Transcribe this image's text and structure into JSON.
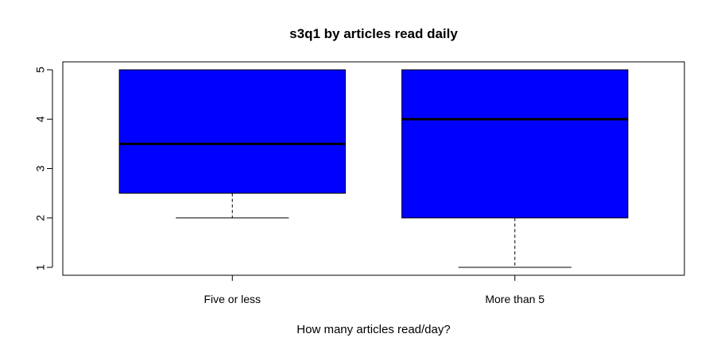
{
  "chart_data": {
    "type": "boxplot",
    "title": "s3q1 by articles read daily",
    "xlabel": "How many articles read/day?",
    "ylabel": "",
    "categories": [
      "Five or less",
      "More than 5"
    ],
    "boxes": [
      {
        "category": "Five or less",
        "whisker_low": 2,
        "q1": 2.5,
        "median": 3.5,
        "q3": 5,
        "whisker_high": 5
      },
      {
        "category": "More than 5",
        "whisker_low": 1,
        "q1": 2,
        "median": 4,
        "q3": 5,
        "whisker_high": 5
      }
    ],
    "yticks": [
      "1",
      "2",
      "3",
      "4",
      "5"
    ],
    "ylim": [
      0.84,
      5.16
    ],
    "fill_color": "#0000ff",
    "grid": false,
    "legend": "none"
  }
}
